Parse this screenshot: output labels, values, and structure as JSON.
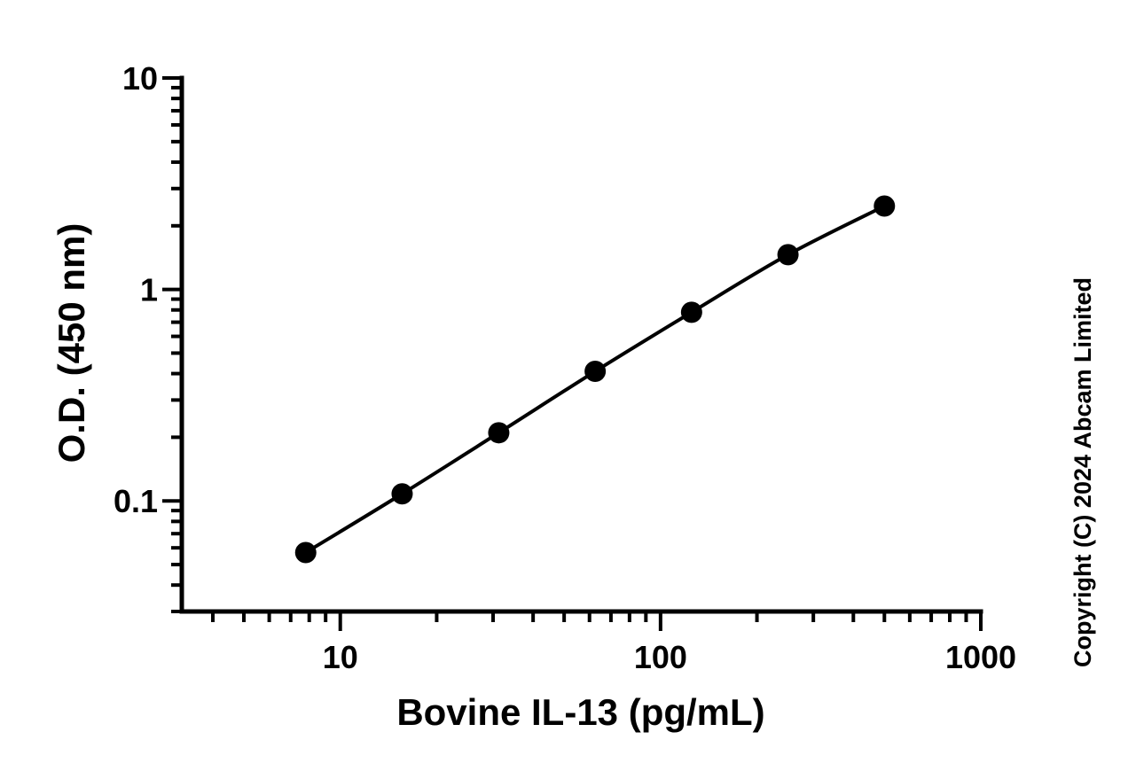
{
  "chart_data": {
    "type": "scatter",
    "xlabel": "Bovine IL-13 (pg/mL)",
    "ylabel": "O.D. (450 nm)",
    "x_scale": "log",
    "y_scale": "log",
    "xlim": [
      3.2,
      1000
    ],
    "ylim": [
      0.03,
      10
    ],
    "x_ticks": [
      10,
      100,
      1000
    ],
    "x_tick_labels": [
      "10",
      "100",
      "1000"
    ],
    "y_ticks": [
      0.1,
      1,
      10
    ],
    "y_tick_labels": [
      "0.1",
      "1",
      "10"
    ],
    "grid": false,
    "legend": "none",
    "series": [
      {
        "x": [
          7.8,
          15.6,
          31.25,
          62.5,
          125,
          250,
          500
        ],
        "y": [
          0.057,
          0.108,
          0.21,
          0.41,
          0.78,
          1.46,
          2.48
        ],
        "marker": "circle",
        "line": "fitted curve",
        "color": "#000000"
      }
    ]
  },
  "copyright": "Copyright (C) 2024 Abcam Limited"
}
